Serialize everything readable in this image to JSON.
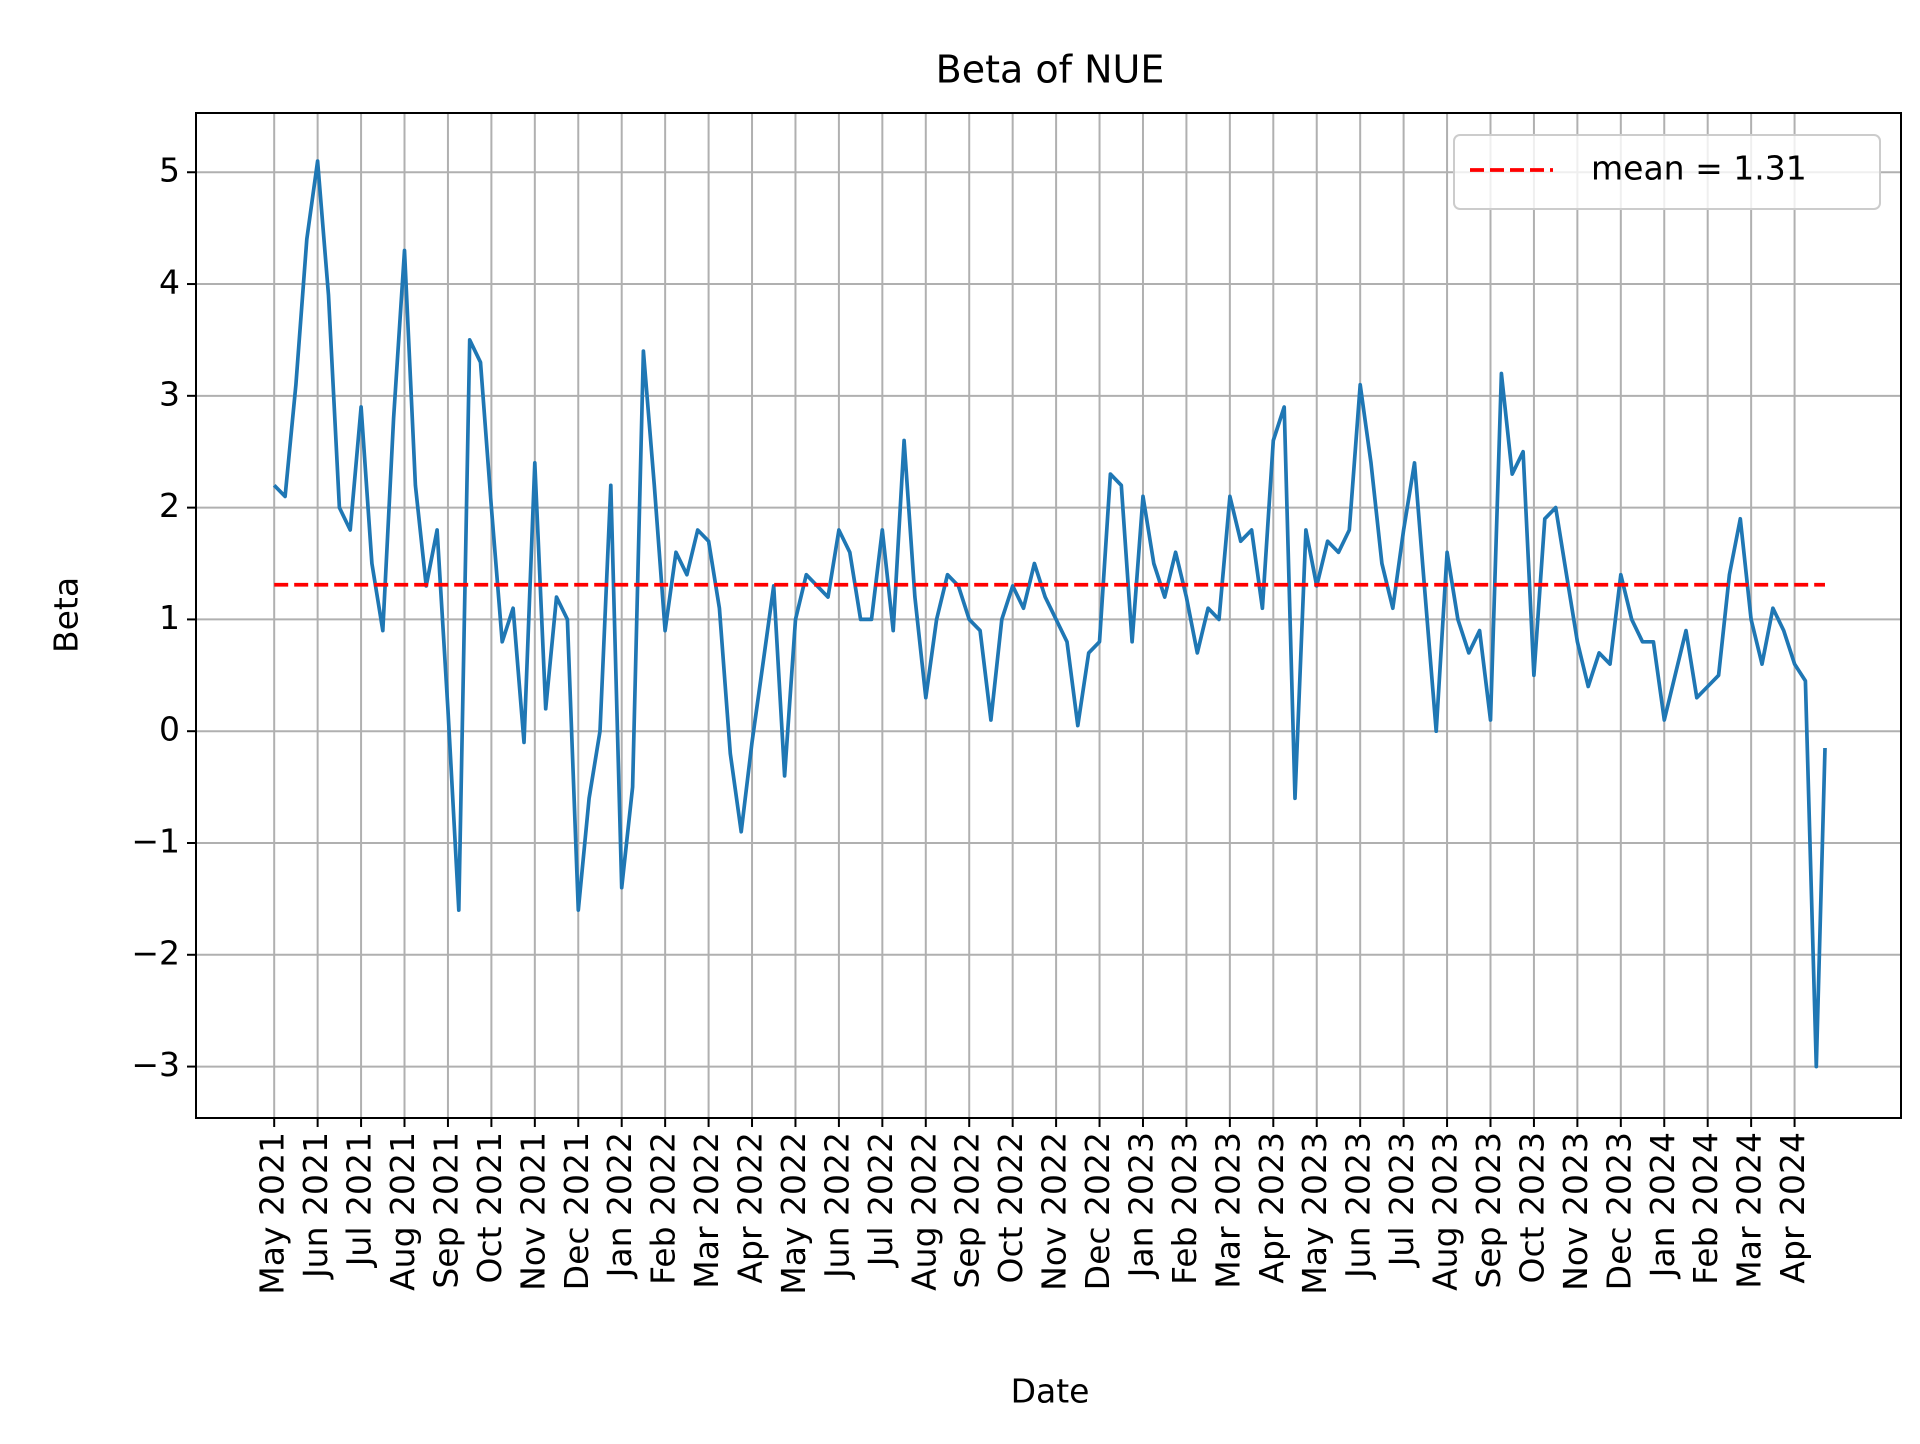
{
  "chart_data": {
    "type": "line",
    "title": "Beta of NUE",
    "x_label": "Date",
    "y_label": "Beta",
    "x": [
      0,
      0.25,
      0.5,
      0.75,
      1,
      1.25,
      1.5,
      1.75,
      2,
      2.25,
      2.5,
      2.75,
      3,
      3.25,
      3.5,
      3.75,
      4,
      4.25,
      4.5,
      4.75,
      5,
      5.25,
      5.5,
      5.75,
      6,
      6.25,
      6.5,
      6.75,
      7,
      7.25,
      7.5,
      7.75,
      8,
      8.25,
      8.5,
      8.75,
      9,
      9.25,
      9.5,
      9.75,
      10,
      10.25,
      10.5,
      10.75,
      11,
      11.25,
      11.5,
      11.75,
      12,
      12.25,
      12.5,
      12.75,
      13,
      13.25,
      13.5,
      13.75,
      14,
      14.25,
      14.5,
      14.75,
      15,
      15.25,
      15.5,
      15.75,
      16,
      16.25,
      16.5,
      16.75,
      17,
      17.25,
      17.5,
      17.75,
      18,
      18.25,
      18.5,
      18.75,
      19,
      19.25,
      19.5,
      19.75,
      20,
      20.25,
      20.5,
      20.75,
      21,
      21.25,
      21.5,
      21.75,
      22,
      22.25,
      22.5,
      22.75,
      23,
      23.25,
      23.5,
      23.75,
      24,
      24.25,
      24.5,
      24.75,
      25,
      25.25,
      25.5,
      25.75,
      26,
      26.25,
      26.5,
      26.75,
      27,
      27.25,
      27.5,
      27.75,
      28,
      28.25,
      28.5,
      28.75,
      29,
      29.25,
      29.5,
      29.75,
      30,
      30.25,
      30.5,
      30.75,
      31,
      31.25,
      31.5,
      31.75,
      32,
      32.25,
      32.5,
      32.75,
      33,
      33.25,
      33.5,
      33.75,
      34,
      34.25,
      34.5,
      34.75,
      35,
      35.25,
      35.5,
      35.7
    ],
    "series": [
      {
        "name": "Beta",
        "color": "#1f77b4",
        "values": [
          2.2,
          2.1,
          3.1,
          4.4,
          5.1,
          3.9,
          2.0,
          1.8,
          2.9,
          1.5,
          0.9,
          2.8,
          4.3,
          2.2,
          1.3,
          1.8,
          0.2,
          -1.6,
          3.5,
          3.3,
          2.0,
          0.8,
          1.1,
          -0.1,
          2.4,
          0.2,
          1.2,
          1.0,
          -1.6,
          -0.6,
          0.0,
          2.2,
          -1.4,
          -0.5,
          3.4,
          2.2,
          0.9,
          1.6,
          1.4,
          1.8,
          1.7,
          1.1,
          -0.2,
          -0.9,
          -0.1,
          0.6,
          1.3,
          -0.4,
          1.0,
          1.4,
          1.3,
          1.2,
          1.8,
          1.6,
          1.0,
          1.0,
          1.8,
          0.9,
          2.6,
          1.2,
          0.3,
          1.0,
          1.4,
          1.3,
          1.0,
          0.9,
          0.1,
          1.0,
          1.3,
          1.1,
          1.5,
          1.2,
          1.0,
          0.8,
          0.05,
          0.7,
          0.8,
          2.3,
          2.2,
          0.8,
          2.1,
          1.5,
          1.2,
          1.6,
          1.2,
          0.7,
          1.1,
          1.0,
          2.1,
          1.7,
          1.8,
          1.1,
          2.6,
          2.9,
          -0.6,
          1.8,
          1.3,
          1.7,
          1.6,
          1.8,
          3.1,
          2.4,
          1.5,
          1.1,
          1.8,
          2.4,
          1.2,
          0.0,
          1.6,
          1.0,
          0.7,
          0.9,
          0.1,
          3.2,
          2.3,
          2.5,
          0.5,
          1.9,
          2.0,
          1.4,
          0.8,
          0.4,
          0.7,
          0.6,
          1.4,
          1.0,
          0.8,
          0.8,
          0.1,
          0.5,
          0.9,
          0.3,
          0.4,
          0.5,
          1.4,
          1.9,
          1.0,
          0.6,
          1.1,
          0.9,
          0.6,
          0.45,
          -3.0,
          -0.15
        ]
      }
    ],
    "mean_line": {
      "label": "mean = 1.31",
      "value": 1.31,
      "color": "#ff0000",
      "linestyle": "dashed"
    },
    "xlim": [
      -1.8,
      37.45
    ],
    "ylim": [
      -3.46,
      5.53
    ],
    "xticks": [
      {
        "value": 0,
        "label": "May 2021"
      },
      {
        "value": 1,
        "label": "Jun 2021"
      },
      {
        "value": 2,
        "label": "Jul 2021"
      },
      {
        "value": 3,
        "label": "Aug 2021"
      },
      {
        "value": 4,
        "label": "Sep 2021"
      },
      {
        "value": 5,
        "label": "Oct 2021"
      },
      {
        "value": 6,
        "label": "Nov 2021"
      },
      {
        "value": 7,
        "label": "Dec 2021"
      },
      {
        "value": 8,
        "label": "Jan 2022"
      },
      {
        "value": 9,
        "label": "Feb 2022"
      },
      {
        "value": 10,
        "label": "Mar 2022"
      },
      {
        "value": 11,
        "label": "Apr 2022"
      },
      {
        "value": 12,
        "label": "May 2022"
      },
      {
        "value": 13,
        "label": "Jun 2022"
      },
      {
        "value": 14,
        "label": "Jul 2022"
      },
      {
        "value": 15,
        "label": "Aug 2022"
      },
      {
        "value": 16,
        "label": "Sep 2022"
      },
      {
        "value": 17,
        "label": "Oct 2022"
      },
      {
        "value": 18,
        "label": "Nov 2022"
      },
      {
        "value": 19,
        "label": "Dec 2022"
      },
      {
        "value": 20,
        "label": "Jan 2023"
      },
      {
        "value": 21,
        "label": "Feb 2023"
      },
      {
        "value": 22,
        "label": "Mar 2023"
      },
      {
        "value": 23,
        "label": "Apr 2023"
      },
      {
        "value": 24,
        "label": "May 2023"
      },
      {
        "value": 25,
        "label": "Jun 2023"
      },
      {
        "value": 26,
        "label": "Jul 2023"
      },
      {
        "value": 27,
        "label": "Aug 2023"
      },
      {
        "value": 28,
        "label": "Sep 2023"
      },
      {
        "value": 29,
        "label": "Oct 2023"
      },
      {
        "value": 30,
        "label": "Nov 2023"
      },
      {
        "value": 31,
        "label": "Dec 2023"
      },
      {
        "value": 32,
        "label": "Jan 2024"
      },
      {
        "value": 33,
        "label": "Feb 2024"
      },
      {
        "value": 34,
        "label": "Mar 2024"
      },
      {
        "value": 35,
        "label": "Apr 2024"
      }
    ],
    "yticks": [
      {
        "value": -3,
        "label": "−3"
      },
      {
        "value": -2,
        "label": "−2"
      },
      {
        "value": -1,
        "label": "−1"
      },
      0,
      1,
      2,
      3,
      4,
      5
    ],
    "grid": true,
    "legend_position": "upper right"
  }
}
